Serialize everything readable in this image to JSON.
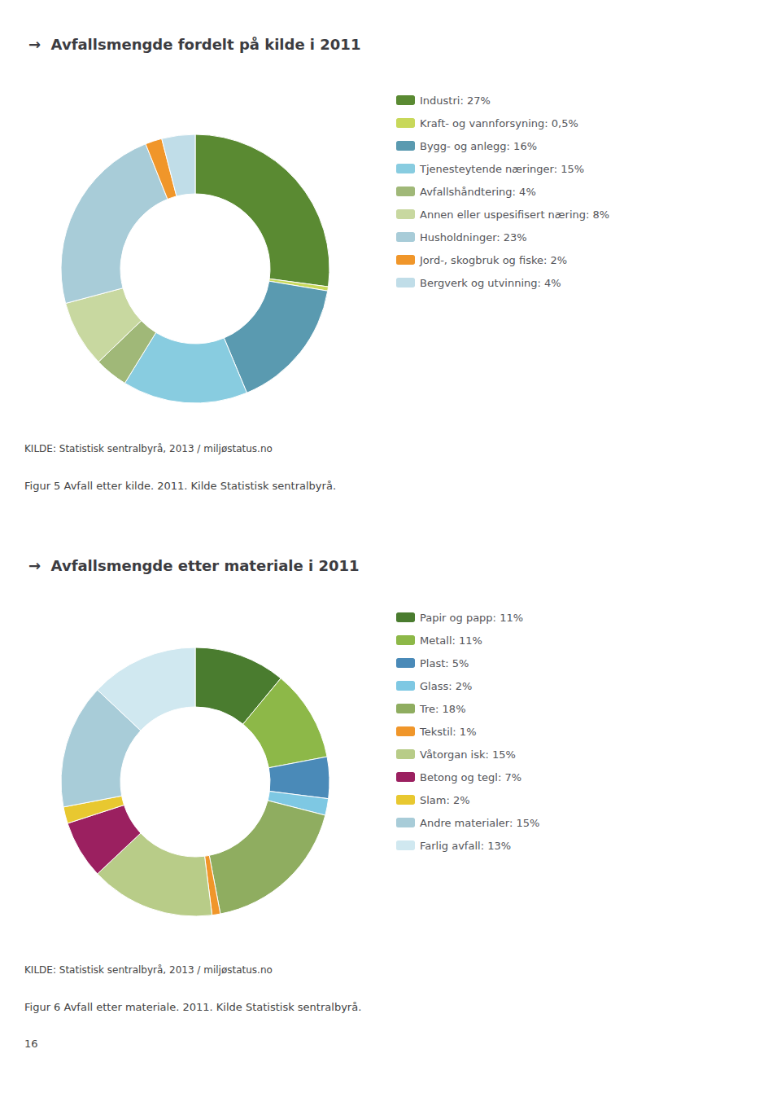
{
  "chart_data": [
    {
      "type": "pie",
      "title": "→  Avfallsmengde fordelt på kilde i 2011",
      "categories": [
        "Industri: 27%",
        "Kraft- og vannforsyning: 0,5%",
        "Bygg- og anlegg: 16%",
        "Tjenesteytende næringer: 15%",
        "Avfallshåndtering: 4%",
        "Annen eller uspesifisert næring: 8%",
        "Husholdninger: 23%",
        "Jord-, skogbruk og fiske: 2%",
        "Bergverk og utvinning: 4%"
      ],
      "values": [
        27,
        0.5,
        16,
        15,
        4,
        8,
        23,
        2,
        4
      ],
      "colors": [
        "#5a8a32",
        "#c8d85a",
        "#5a9ab0",
        "#88cce0",
        "#a0b878",
        "#c8d8a0",
        "#a8ccd8",
        "#f0962a",
        "#c0dde8"
      ],
      "legend": "right",
      "annotations": [
        "KILDE: Statistisk sentralbyrå, 2013 / miljøstatus.no",
        "Figur 5 Avfall etter kilde. 2011. Kilde Statistisk sentralbyrå."
      ]
    },
    {
      "type": "pie",
      "title": "→  Avfallsmengde etter materiale i 2011",
      "categories": [
        "Papir og papp: 11%",
        "Metall: 11%",
        "Plast: 5%",
        "Glass: 2%",
        "Tre: 18%",
        "Tekstil: 1%",
        "Våtorgan isk: 15%",
        "Betong og tegl: 7%",
        "Slam: 2%",
        "Andre materialer: 15%",
        "Farlig avfall: 13%"
      ],
      "values": [
        11,
        11,
        5,
        2,
        18,
        1,
        15,
        7,
        2,
        15,
        13
      ],
      "colors": [
        "#4a7c2f",
        "#8db848",
        "#4a8ab8",
        "#7ec8e3",
        "#8fad60",
        "#f0962a",
        "#b8cc88",
        "#9b2060",
        "#e8c830",
        "#a8ccd8",
        "#d0e8f0"
      ],
      "legend": "right",
      "annotations": [
        "KILDE: Statistisk sentralbyrå, 2013 / miljøstatus.no",
        "Figur 6 Avfall etter materiale. 2011. Kilde Statistisk sentralbyrå.",
        "16"
      ]
    }
  ]
}
